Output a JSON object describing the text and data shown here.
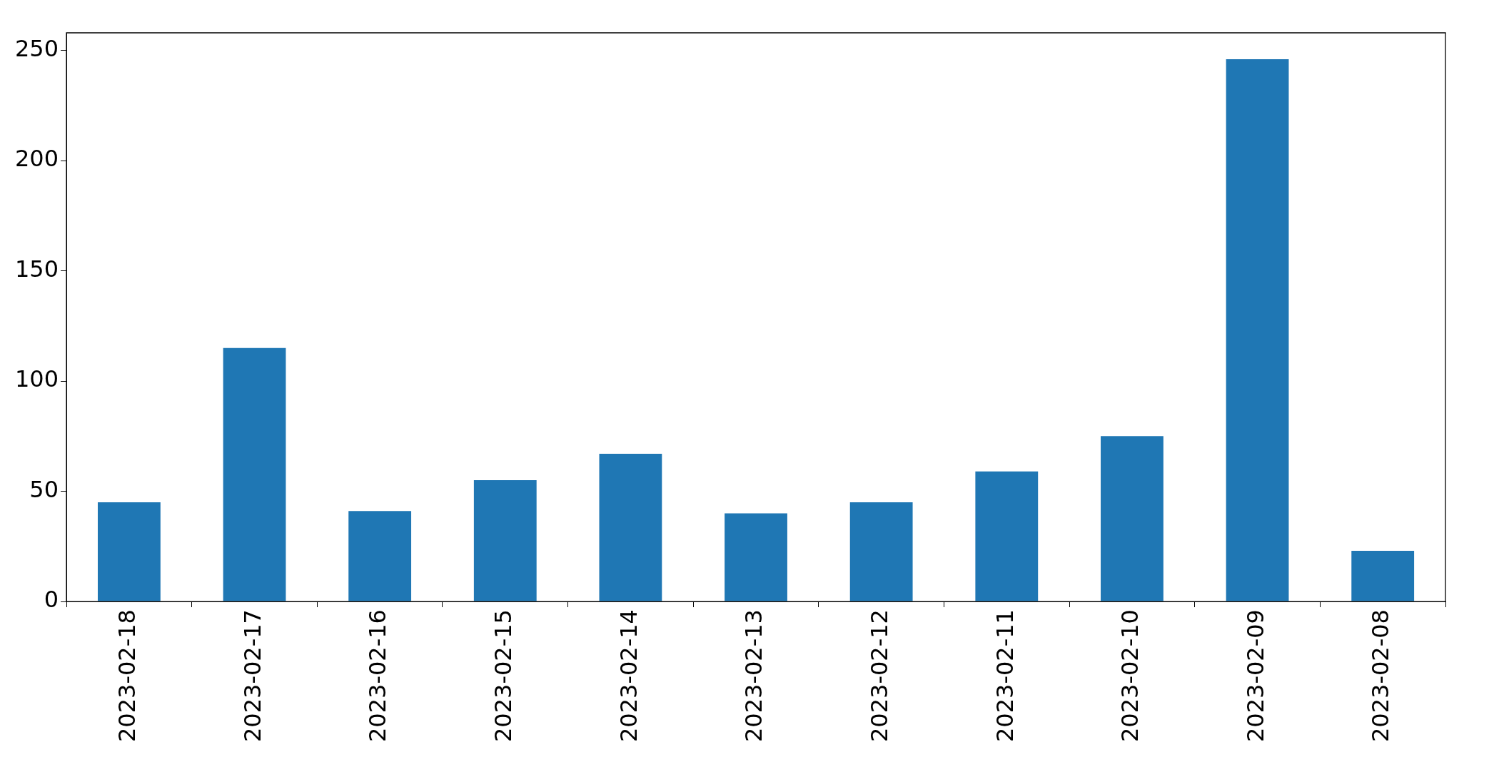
{
  "chart_data": {
    "type": "bar",
    "categories": [
      "2023-02-18",
      "2023-02-17",
      "2023-02-16",
      "2023-02-15",
      "2023-02-14",
      "2023-02-13",
      "2023-02-12",
      "2023-02-11",
      "2023-02-10",
      "2023-02-09",
      "2023-02-08"
    ],
    "values": [
      45,
      115,
      41,
      55,
      67,
      40,
      45,
      59,
      75,
      246,
      23
    ],
    "color": "#1f77b4",
    "ylim": [
      0,
      258
    ],
    "yticks": [
      0,
      50,
      100,
      150,
      200,
      250
    ],
    "grid": false,
    "legend": false
  }
}
